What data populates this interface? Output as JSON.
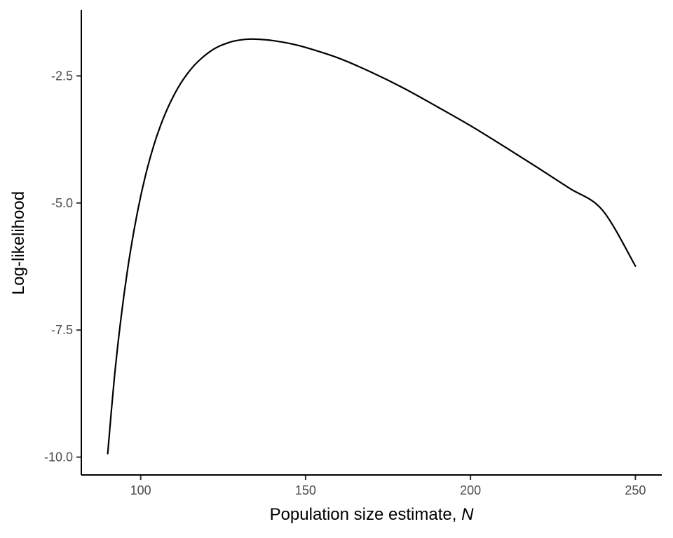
{
  "chart_data": {
    "type": "line",
    "title": "",
    "xlabel_text": "Population size estimate, ",
    "xlabel_var": "N",
    "ylabel": "Log-likelihood",
    "xlim": [
      82,
      258
    ],
    "ylim": [
      -10.35,
      -1.2
    ],
    "x_ticks": [
      100,
      150,
      200,
      250
    ],
    "x_tick_labels": [
      "100",
      "150",
      "200",
      "250"
    ],
    "y_ticks": [
      -2.5,
      -5.0,
      -7.5,
      -10.0
    ],
    "y_tick_labels": [
      "-2.5",
      "-5.0",
      "-7.5",
      "-10.0"
    ],
    "grid": false,
    "legend": "none",
    "line_color": "#000000",
    "series": [
      {
        "x": [
          90,
          92,
          94,
          96,
          98,
          100,
          102,
          104,
          106,
          108,
          110,
          112,
          114,
          116,
          118,
          120,
          122,
          124,
          126,
          128,
          130,
          132,
          134,
          136,
          138,
          140,
          145,
          150,
          160,
          170,
          180,
          190,
          200,
          210,
          220,
          230,
          240,
          250
        ],
        "y": [
          -9.93,
          -8.45,
          -7.28,
          -6.32,
          -5.53,
          -4.87,
          -4.32,
          -3.86,
          -3.48,
          -3.16,
          -2.89,
          -2.66,
          -2.47,
          -2.31,
          -2.18,
          -2.07,
          -1.98,
          -1.91,
          -1.86,
          -1.82,
          -1.795,
          -1.78,
          -1.775,
          -1.78,
          -1.79,
          -1.805,
          -1.86,
          -1.94,
          -2.15,
          -2.43,
          -2.75,
          -3.11,
          -3.48,
          -3.88,
          -4.29,
          -4.71,
          -5.14,
          -6.24
        ]
      }
    ]
  }
}
